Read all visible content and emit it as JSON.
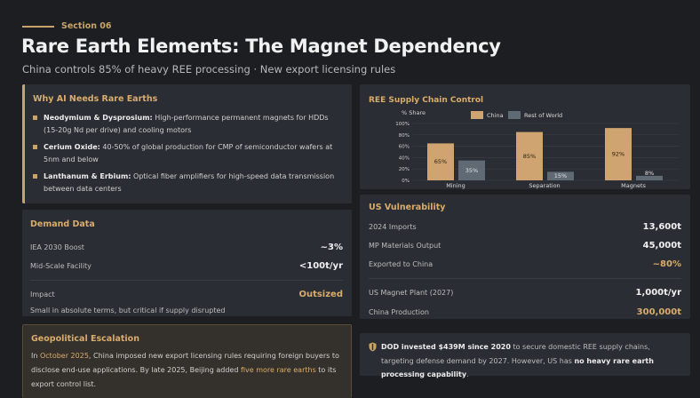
{
  "header": {
    "section": "Section 06",
    "title": "Rare Earth Elements: The Magnet Dependency",
    "subtitle": "China controls 85% of heavy REE processing · New export licensing rules"
  },
  "why": {
    "heading": "Why AI Needs Rare Earths",
    "items": [
      {
        "term": "Neodymium & Dysprosium:",
        "desc": " High-performance permanent magnets for HDDs (15-20g Nd per drive) and cooling motors"
      },
      {
        "term": "Cerium Oxide:",
        "desc": " 40-50% of global production for CMP of semiconductor wafers at 5nm and below"
      },
      {
        "term": "Lanthanum & Erbium:",
        "desc": " Optical fiber amplifiers for high-speed data transmission between data centers"
      }
    ]
  },
  "demand": {
    "heading": "Demand Data",
    "rows": [
      {
        "label": "IEA 2030 Boost",
        "value": "~3%"
      },
      {
        "label": "Mid-Scale Facility",
        "value": "<100t/yr"
      },
      {
        "label": "Impact",
        "value": "Outsized"
      }
    ],
    "note": "Small in absolute terms, but critical if supply disrupted"
  },
  "geo": {
    "heading": "Geopolitical Escalation",
    "t1": "In ",
    "t2": "October 2025",
    "t3": ", China imposed new export licensing rules requiring foreign buyers to disclose end-use applications. By late 2025, Beijing added ",
    "t4": "five more rare earths",
    "t5": " to its export control list."
  },
  "chart_data": {
    "type": "bar",
    "title": "REE Supply Chain Control",
    "ylabel": "% Share",
    "categories": [
      "Mining",
      "Separation",
      "Magnets"
    ],
    "series": [
      {
        "name": "China",
        "values": [
          65,
          85,
          92
        ]
      },
      {
        "name": "Rest of World",
        "values": [
          35,
          15,
          8
        ]
      }
    ],
    "ylim": [
      0,
      100
    ],
    "yticks": [
      "0%",
      "20%",
      "40%",
      "60%",
      "80%",
      "100%"
    ],
    "colors": [
      "#cfa470",
      "#5f6a75"
    ],
    "legend": "top",
    "grid": true
  },
  "us": {
    "heading": "US Vulnerability",
    "group1": [
      {
        "label": "2024 Imports",
        "value": "13,600t"
      },
      {
        "label": "MP Materials Output",
        "value": "45,000t"
      },
      {
        "label": "Exported to China",
        "value": "~80%"
      }
    ],
    "group2": [
      {
        "label": "US Magnet Plant (2027)",
        "value": "1,000t/yr"
      },
      {
        "label": "China Production",
        "value": "300,000t"
      }
    ]
  },
  "dod": {
    "b1": "DOD invested $439M since 2020",
    "t1": " to secure domestic REE supply chains, targeting defense demand by 2027. However, US has ",
    "b2": "no heavy rare earth processing capability",
    "t2": "."
  }
}
